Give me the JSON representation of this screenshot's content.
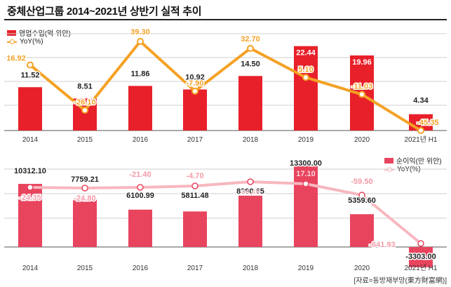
{
  "title": "중체산업그룹 2014~2021년 상반기 실적 추이",
  "source": "[자료=동방재부망(東方財富網)]",
  "colors": {
    "revenue_bar": "#e8202a",
    "revenue_line": "#f4a124",
    "profit_bar": "#e8445e",
    "profit_line": "#f7b7bf",
    "profit_neg_bar": "#e8445e",
    "grid": "#cfcfcf"
  },
  "chart_data": [
    {
      "type": "bar",
      "title": "",
      "categories": [
        "2014",
        "2015",
        "2016",
        "2017",
        "2018",
        "2019",
        "2020",
        "2021년 H1"
      ],
      "series": [
        {
          "name": "영업수입(억 위안)",
          "values": [
            11.52,
            8.51,
            11.86,
            10.92,
            14.5,
            22.44,
            19.96,
            4.34
          ]
        },
        {
          "name": "YoY(%)",
          "type": "line",
          "values": [
            16.92,
            -26.1,
            39.3,
            -7.9,
            32.7,
            5.1,
            -11.03,
            -45.35
          ]
        }
      ],
      "labels": {
        "bars": [
          "11.52",
          "8.51",
          "11.86",
          "10.92",
          "14.50",
          "22.44",
          "19.96",
          "4.34"
        ],
        "line": [
          "16.92",
          "-26.10",
          "39.30",
          "-7.90",
          "32.70",
          "5.10",
          "-11.03",
          "-45.35"
        ]
      },
      "ylim_bar": [
        0,
        25
      ],
      "ylim_line": [
        -60,
        60
      ],
      "legend_position": "top-left"
    },
    {
      "type": "bar",
      "title": "",
      "categories": [
        "2014",
        "2015",
        "2016",
        "2017",
        "2018",
        "2019",
        "2020",
        "2021년 H1"
      ],
      "series": [
        {
          "name": "순이익(만 위안)",
          "values": [
            10312.1,
            7759.21,
            6100.99,
            5811.48,
            8390.65,
            13300.0,
            5359.6,
            -3303.0
          ]
        },
        {
          "name": "YoY(%)",
          "type": "line",
          "values": [
            -24.35,
            -24.8,
            -21.4,
            -4.7,
            44.4,
            17.1,
            -59.5,
            -641.93
          ]
        }
      ],
      "labels": {
        "bars": [
          "10312.10",
          "7759.21",
          "6100.99",
          "5811.48",
          "8390.65",
          "13300.00",
          "5359.60",
          "-3303.00"
        ],
        "line": [
          "-24.35",
          "-24.80",
          "-21.40",
          "-4.70",
          "44.40",
          "17.10",
          "-59.50",
          "-641.93"
        ]
      },
      "ylim_bar": [
        -5000,
        15000
      ],
      "ylim_line": [
        -800,
        800
      ],
      "legend_position": "top-right"
    }
  ]
}
